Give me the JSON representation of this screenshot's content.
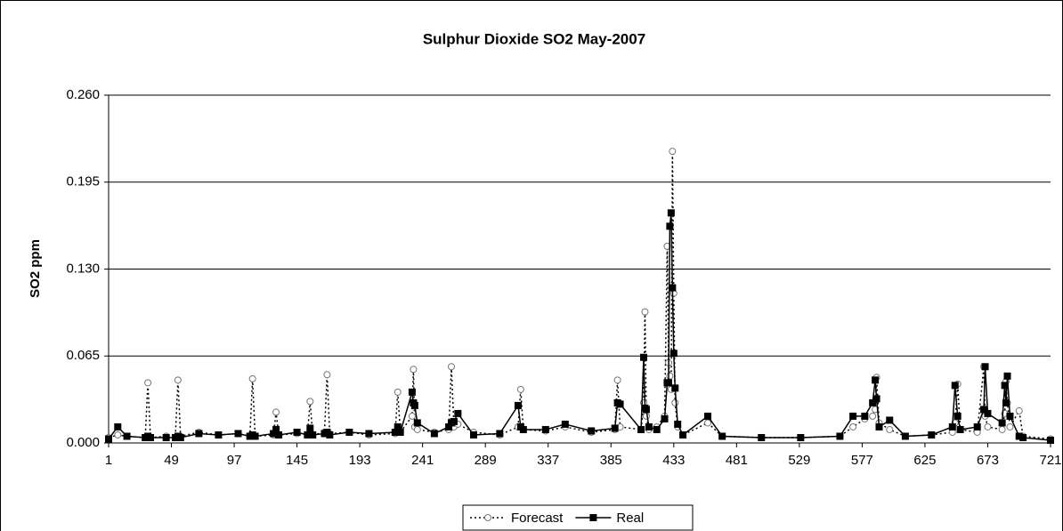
{
  "chart_data": {
    "type": "line",
    "title": "Sulphur Dioxide SO2 May-2007",
    "y_label": "SO2 ppm",
    "x": [
      1,
      8,
      15,
      29,
      31,
      33,
      45,
      52,
      54,
      56,
      70,
      85,
      100,
      109,
      111,
      113,
      127,
      129,
      131,
      145,
      153,
      155,
      157,
      166,
      168,
      170,
      185,
      200,
      220,
      222,
      224,
      233,
      234,
      235,
      237,
      250,
      261,
      263,
      265,
      268,
      280,
      300,
      314,
      316,
      318,
      335,
      350,
      370,
      388,
      390,
      392,
      408,
      410,
      411,
      412,
      414,
      420,
      426,
      428,
      429,
      430,
      431,
      432,
      433,
      434,
      436,
      440,
      459,
      470,
      500,
      530,
      560,
      570,
      579,
      585,
      587,
      588,
      590,
      598,
      610,
      630,
      646,
      648,
      650,
      652,
      665,
      670,
      671,
      673,
      684,
      686,
      687,
      688,
      690,
      697,
      700,
      721
    ],
    "series": [
      {
        "name": "Forecast",
        "color": "#000000",
        "marker_fill": "#ffffff",
        "marker_stroke": "#777777",
        "line_style": "dotted",
        "marker": "circle",
        "values": [
          0.004,
          0.006,
          0.005,
          0.004,
          0.045,
          0.004,
          0.005,
          0.004,
          0.047,
          0.005,
          0.008,
          0.006,
          0.007,
          0.005,
          0.048,
          0.005,
          0.006,
          0.023,
          0.006,
          0.007,
          0.006,
          0.031,
          0.006,
          0.008,
          0.051,
          0.007,
          0.008,
          0.006,
          0.007,
          0.038,
          0.008,
          0.02,
          0.055,
          0.012,
          0.01,
          0.008,
          0.01,
          0.057,
          0.012,
          0.014,
          0.008,
          0.006,
          0.012,
          0.04,
          0.01,
          0.009,
          0.012,
          0.008,
          0.01,
          0.047,
          0.012,
          0.01,
          0.03,
          0.098,
          0.02,
          0.01,
          0.012,
          0.02,
          0.147,
          0.06,
          0.05,
          0.04,
          0.218,
          0.112,
          0.03,
          0.012,
          0.006,
          0.015,
          0.005,
          0.004,
          0.004,
          0.005,
          0.012,
          0.018,
          0.02,
          0.025,
          0.049,
          0.015,
          0.01,
          0.005,
          0.006,
          0.008,
          0.015,
          0.044,
          0.01,
          0.008,
          0.057,
          0.02,
          0.012,
          0.01,
          0.022,
          0.046,
          0.03,
          0.012,
          0.024,
          0.005,
          0.003
        ]
      },
      {
        "name": "Real",
        "color": "#000000",
        "marker_fill": "#000000",
        "marker_stroke": "#000000",
        "line_style": "solid",
        "marker": "square",
        "values": [
          0.003,
          0.012,
          0.005,
          0.004,
          0.005,
          0.004,
          0.004,
          0.004,
          0.005,
          0.004,
          0.007,
          0.006,
          0.007,
          0.005,
          0.006,
          0.005,
          0.007,
          0.01,
          0.006,
          0.008,
          0.006,
          0.011,
          0.006,
          0.007,
          0.008,
          0.006,
          0.008,
          0.007,
          0.008,
          0.012,
          0.008,
          0.038,
          0.03,
          0.028,
          0.015,
          0.007,
          0.012,
          0.015,
          0.016,
          0.022,
          0.006,
          0.007,
          0.028,
          0.012,
          0.01,
          0.01,
          0.014,
          0.009,
          0.011,
          0.03,
          0.029,
          0.01,
          0.064,
          0.026,
          0.025,
          0.012,
          0.01,
          0.018,
          0.045,
          0.045,
          0.162,
          0.172,
          0.116,
          0.067,
          0.041,
          0.014,
          0.006,
          0.02,
          0.005,
          0.004,
          0.004,
          0.005,
          0.02,
          0.02,
          0.03,
          0.047,
          0.033,
          0.012,
          0.017,
          0.005,
          0.006,
          0.012,
          0.043,
          0.02,
          0.01,
          0.012,
          0.025,
          0.057,
          0.022,
          0.015,
          0.043,
          0.03,
          0.05,
          0.02,
          0.005,
          0.004,
          0.002
        ]
      }
    ],
    "xlim": [
      1,
      721
    ],
    "xticks": [
      1,
      49,
      97,
      145,
      193,
      241,
      289,
      337,
      385,
      433,
      481,
      529,
      577,
      625,
      673,
      721
    ],
    "ylim": [
      0,
      0.26
    ],
    "yticks": [
      {
        "value": 0,
        "label": "0.000"
      },
      {
        "value": 0.065,
        "label": "0.065"
      },
      {
        "value": 0.13,
        "label": "0.130"
      },
      {
        "value": 0.195,
        "label": "0.195"
      },
      {
        "value": 0.26,
        "label": "0.260"
      }
    ],
    "grid": true,
    "legend": "bottom"
  }
}
